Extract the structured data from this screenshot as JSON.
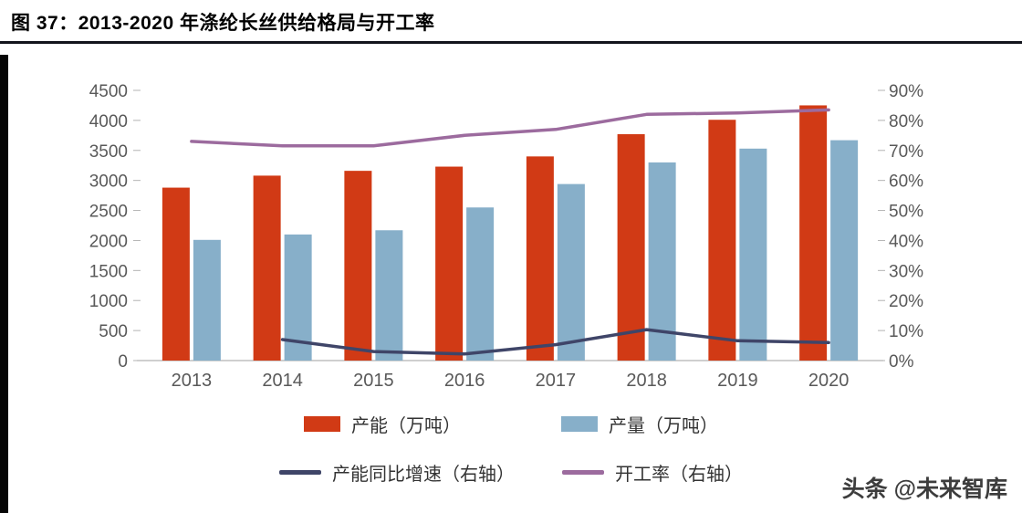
{
  "figure": {
    "title": "图 37：2013-2020 年涤纶长丝供给格局与开工率",
    "watermark": "头条 @未来智库"
  },
  "colors": {
    "capacity_bar": "#d13a15",
    "output_bar": "#87afc9",
    "growth_line": "#3f4568",
    "operating_rate_line": "#9c6b9e",
    "axis_text": "#595959",
    "axis_line": "#bfbfbf",
    "tick_mark": "#b3b3b3",
    "title_rule": "#12141c",
    "accent_bar": "#060606",
    "legend_text": "#333333",
    "watermark_text": "#3d3d3d"
  },
  "chart_data": {
    "type": "bar",
    "subtype": "bar-line-combo",
    "title": "2013-2020 年涤纶长丝供给格局与开工率",
    "categories": [
      "2013",
      "2014",
      "2015",
      "2016",
      "2017",
      "2018",
      "2019",
      "2020"
    ],
    "series": [
      {
        "name": "产能（万吨）",
        "type": "bar",
        "axis": "left",
        "color": "#d13a15",
        "values": [
          2880,
          3080,
          3160,
          3230,
          3400,
          3770,
          4010,
          4250
        ]
      },
      {
        "name": "产量（万吨）",
        "type": "bar",
        "axis": "left",
        "color": "#87afc9",
        "values": [
          2010,
          2100,
          2170,
          2550,
          2940,
          3300,
          3530,
          3670
        ]
      },
      {
        "name": "产能同比增速（右轴）",
        "type": "line",
        "axis": "right",
        "color": "#3f4568",
        "values": [
          null,
          7.0,
          3.0,
          2.2,
          5.3,
          10.3,
          6.6,
          6.0
        ]
      },
      {
        "name": "开工率（右轴）",
        "type": "line",
        "axis": "right",
        "color": "#9c6b9e",
        "values": [
          73,
          71.5,
          71.5,
          75,
          77,
          82,
          82.5,
          83.5
        ]
      }
    ],
    "left_axis": {
      "min": 0,
      "max": 4500,
      "step": 500
    },
    "right_axis": {
      "min": 0,
      "max": 90,
      "step": 10,
      "suffix": "%"
    },
    "legend_position": "bottom",
    "grid": false
  }
}
